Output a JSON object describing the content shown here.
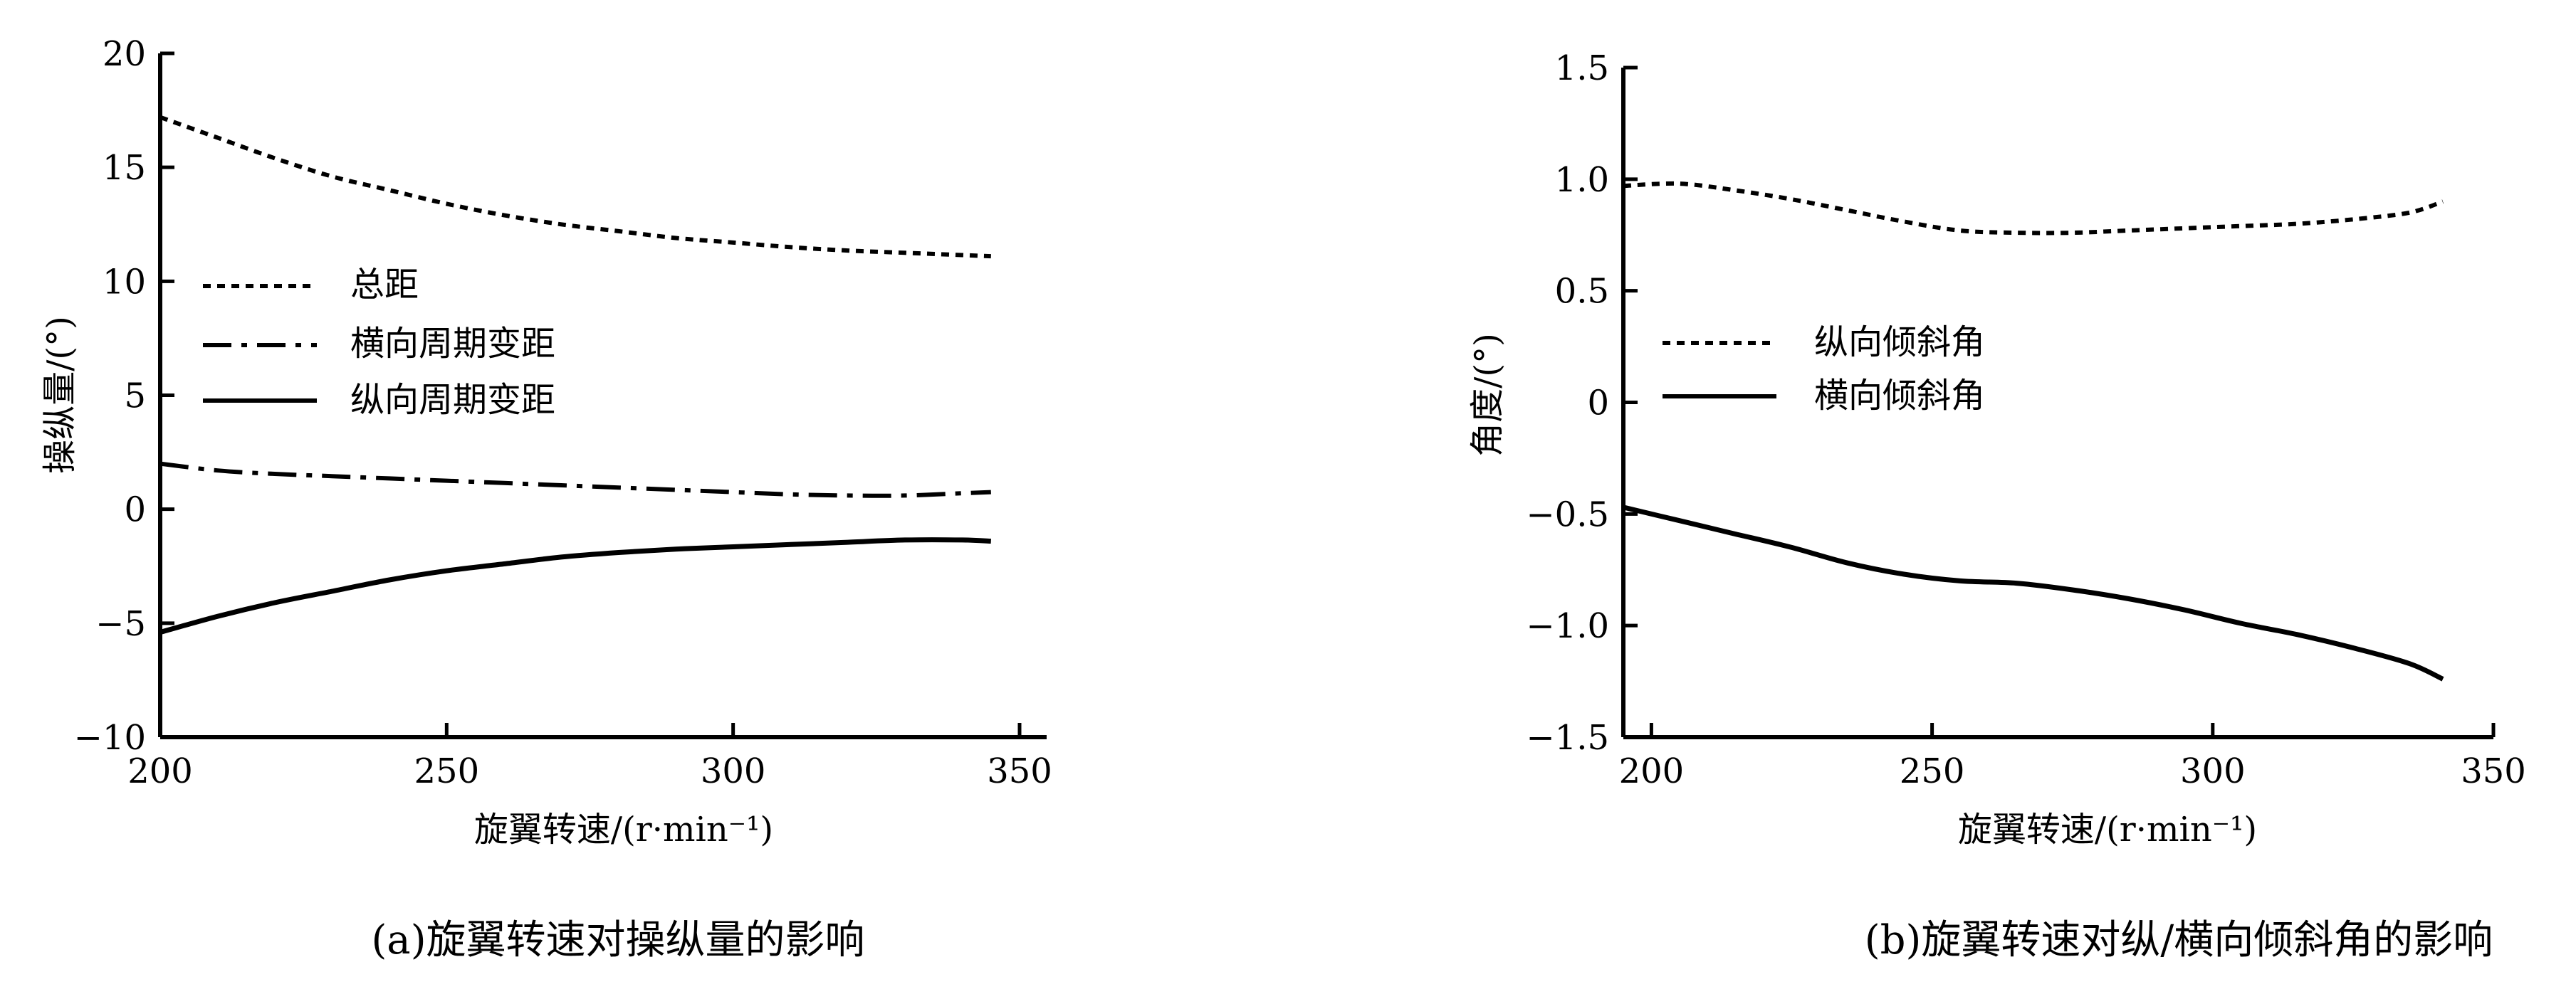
{
  "figure": {
    "panels": [
      {
        "caption": "(a)旋翼转速对操纵量的影响",
        "xlabel": "旋翼转速/(r·min⁻¹)",
        "ylabel": "操纵量/(°)"
      },
      {
        "caption": "(b)旋翼转速对纵/横向倾斜角的影响",
        "xlabel": "旋翼转速/(r·min⁻¹)",
        "ylabel": "角度/(°)"
      }
    ]
  },
  "chart_data": [
    {
      "type": "line",
      "title": "(a)旋翼转速对操纵量的影响",
      "xlabel": "旋翼转速/(r·min⁻¹)",
      "ylabel": "操纵量/(°)",
      "xlim": [
        200,
        350
      ],
      "ylim": [
        -10,
        20
      ],
      "xticks": [
        200,
        250,
        300,
        350
      ],
      "xtick_labels": [
        "200",
        "250",
        "300",
        "350"
      ],
      "yticks": [
        20,
        15,
        10,
        5,
        0,
        -5,
        -10
      ],
      "ytick_labels": [
        "20",
        "15",
        "10",
        "5",
        "0",
        "−5",
        "−10"
      ],
      "grid": false,
      "legend_position": "middle-left",
      "series": [
        {
          "name": "总距",
          "style": "dotted",
          "x": [
            200,
            210,
            220,
            230,
            240,
            250,
            260,
            270,
            280,
            290,
            300,
            310,
            320,
            330,
            340,
            345
          ],
          "y": [
            17.2,
            16.3,
            15.4,
            14.6,
            14.0,
            13.4,
            12.9,
            12.5,
            12.2,
            11.9,
            11.7,
            11.5,
            11.35,
            11.25,
            11.15,
            11.1
          ]
        },
        {
          "name": "横向周期变距",
          "style": "dash-dot",
          "x": [
            200,
            210,
            220,
            230,
            240,
            250,
            260,
            270,
            280,
            290,
            300,
            310,
            320,
            330,
            340,
            345
          ],
          "y": [
            2.0,
            1.7,
            1.55,
            1.45,
            1.35,
            1.25,
            1.15,
            1.05,
            0.95,
            0.85,
            0.75,
            0.65,
            0.6,
            0.6,
            0.7,
            0.75
          ]
        },
        {
          "name": "纵向周期变距",
          "style": "solid",
          "x": [
            200,
            210,
            220,
            230,
            240,
            250,
            260,
            270,
            280,
            290,
            300,
            310,
            320,
            330,
            340,
            345
          ],
          "y": [
            -5.4,
            -4.7,
            -4.1,
            -3.6,
            -3.1,
            -2.7,
            -2.4,
            -2.1,
            -1.9,
            -1.75,
            -1.65,
            -1.55,
            -1.45,
            -1.35,
            -1.35,
            -1.4
          ]
        }
      ]
    },
    {
      "type": "line",
      "title": "(b)旋翼转速对纵/横向倾斜角的影响",
      "xlabel": "旋翼转速/(r·min⁻¹)",
      "ylabel": "角度/(°)",
      "xlim": [
        195,
        350
      ],
      "ylim": [
        -1.5,
        1.5
      ],
      "xticks": [
        200,
        250,
        300,
        350
      ],
      "xtick_labels": [
        "200",
        "250",
        "300",
        "350"
      ],
      "yticks": [
        1.5,
        1.0,
        0.5,
        0,
        -0.5,
        -1.0,
        -1.5
      ],
      "ytick_labels": [
        "1.5",
        "1.0",
        "0.5",
        "0",
        "−0.5",
        "−1.0",
        "−1.5"
      ],
      "grid": false,
      "legend_position": "middle-left",
      "series": [
        {
          "name": "纵向倾斜角",
          "style": "dotted",
          "x": [
            195,
            205,
            215,
            225,
            235,
            245,
            255,
            265,
            275,
            285,
            295,
            305,
            315,
            325,
            335,
            341
          ],
          "y": [
            0.97,
            0.98,
            0.95,
            0.91,
            0.86,
            0.81,
            0.77,
            0.76,
            0.76,
            0.77,
            0.78,
            0.79,
            0.8,
            0.82,
            0.85,
            0.9
          ]
        },
        {
          "name": "横向倾斜角",
          "style": "solid",
          "x": [
            195,
            205,
            215,
            225,
            235,
            245,
            255,
            265,
            275,
            285,
            295,
            305,
            315,
            325,
            335,
            341
          ],
          "y": [
            -0.47,
            -0.53,
            -0.59,
            -0.65,
            -0.72,
            -0.77,
            -0.8,
            -0.81,
            -0.84,
            -0.88,
            -0.93,
            -0.99,
            -1.04,
            -1.1,
            -1.17,
            -1.24
          ]
        }
      ]
    }
  ]
}
